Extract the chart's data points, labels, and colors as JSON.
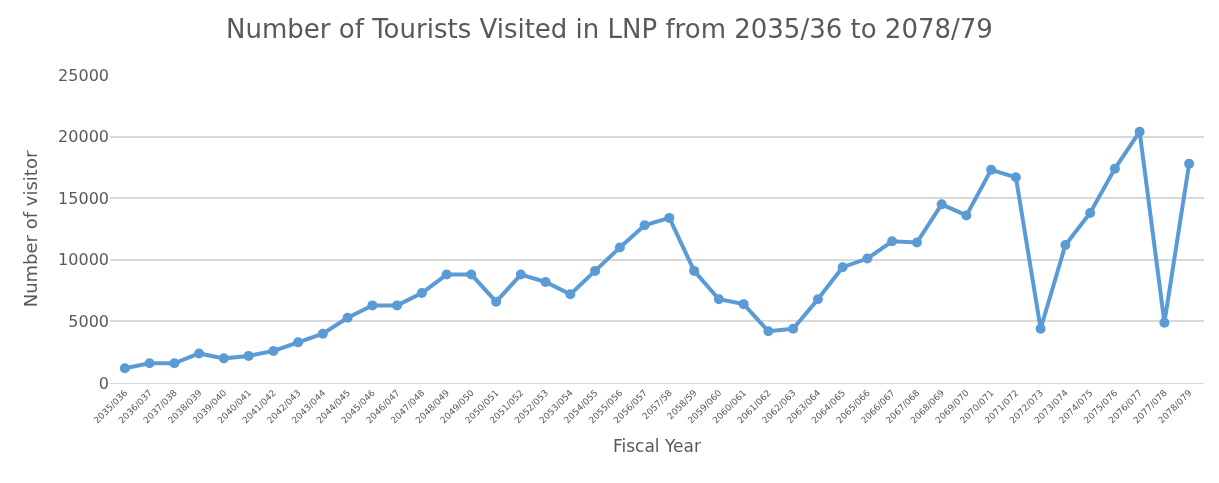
{
  "chart_data": {
    "type": "line",
    "title": "Number of Tourists Visited in LNP from 2035/36 to 2078/79",
    "xlabel": "Fiscal Year",
    "ylabel": "Number of visitor",
    "categories": [
      "2035/036",
      "2036/037",
      "2037/038",
      "2038/039",
      "2039/040",
      "2040/041",
      "2041/042",
      "2042/043",
      "2043/044",
      "2044/045",
      "2045/046",
      "2046/047",
      "2047/048",
      "2048/049",
      "2049/050",
      "2050/051",
      "2051/052",
      "2052/053",
      "2053/054",
      "2054/055",
      "2055/056",
      "2056/057",
      "2057/58",
      "2058/59",
      "2059/060",
      "2060/061",
      "2061/062",
      "2062/063",
      "2063/064",
      "2064/065",
      "2065/066",
      "2066/067",
      "2067/068",
      "2068/069",
      "2069/070",
      "2070/071",
      "2071/072",
      "2072/073",
      "2073/074",
      "2074/075",
      "2075/076",
      "2076/077",
      "2077/078",
      "2078/079"
    ],
    "series": [
      {
        "color": "#5b9bd5",
        "values": [
          1200,
          1600,
          1600,
          2400,
          2000,
          2200,
          2600,
          3300,
          4000,
          5300,
          6300,
          6300,
          7300,
          8800,
          8800,
          6600,
          8800,
          8200,
          7200,
          9100,
          11000,
          12800,
          13400,
          9100,
          6800,
          6400,
          4200,
          4400,
          6800,
          9400,
          10100,
          11500,
          11400,
          14500,
          13600,
          17300,
          16700,
          4400,
          11200,
          13800,
          17400,
          20400,
          4900,
          17800
        ]
      }
    ],
    "ylim": [
      0,
      25000
    ],
    "yticks": [
      0,
      5000,
      10000,
      15000,
      20000,
      25000
    ],
    "grid": "y",
    "marker": "circle",
    "line_style": "solid"
  }
}
